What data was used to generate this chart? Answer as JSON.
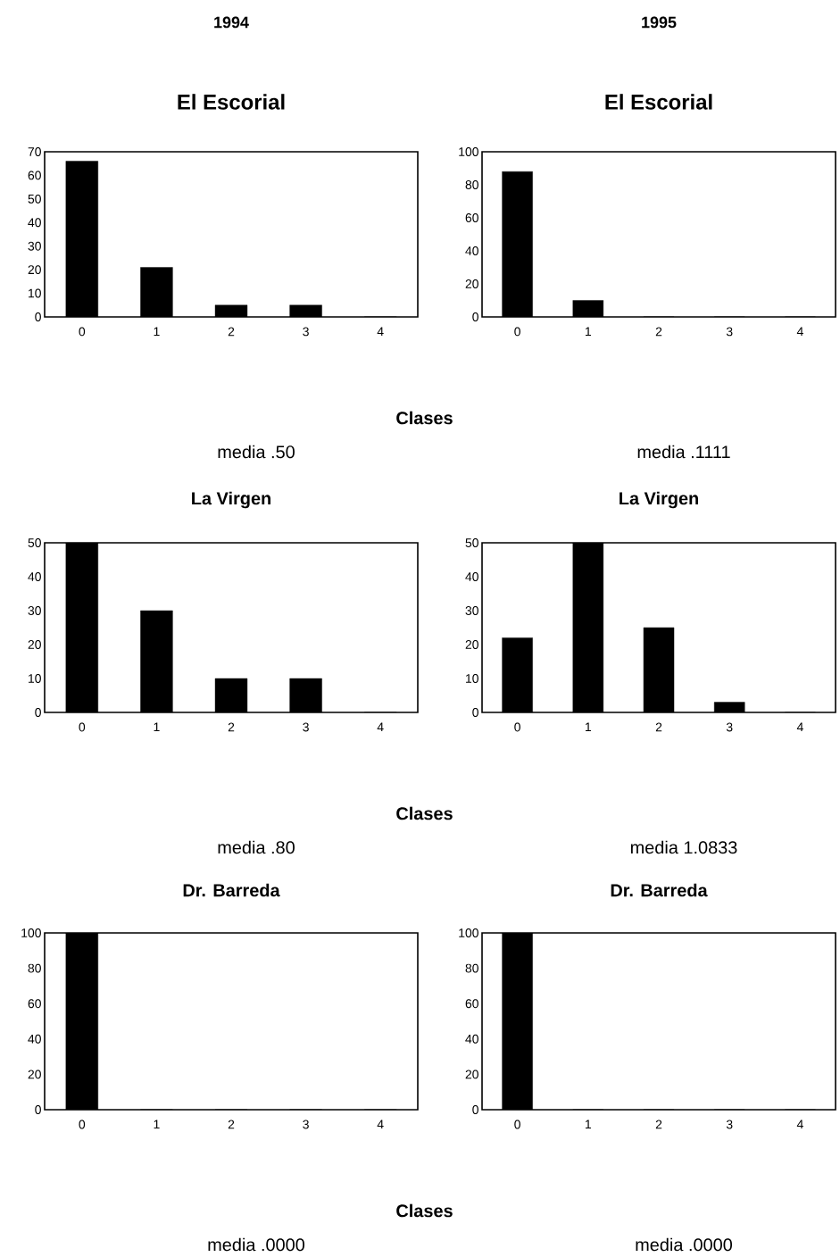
{
  "chart_data": [
    {
      "type": "bar",
      "subtitle": "1994",
      "title": "El Escorial",
      "xlabel": "Clases",
      "annotations": [
        "media .50"
      ],
      "categories": [
        "0",
        "1",
        "2",
        "3",
        "4"
      ],
      "values": [
        66,
        21,
        5,
        5,
        0
      ],
      "color": "#000000",
      "ylim": [
        0,
        70
      ],
      "yticks": [
        0,
        10,
        20,
        30,
        40,
        50,
        60,
        70
      ]
    },
    {
      "type": "bar",
      "subtitle": "1995",
      "title": "El Escorial",
      "annotations": [
        "media .1111"
      ],
      "categories": [
        "0",
        "1",
        "2",
        "3",
        "4"
      ],
      "values": [
        88,
        10,
        0,
        0,
        0
      ],
      "color": "#000000",
      "ylim": [
        0,
        100
      ],
      "yticks": [
        0,
        20,
        40,
        60,
        80,
        100
      ]
    },
    {
      "type": "bar",
      "title": "La Virgen",
      "xlabel": "Clases",
      "annotations": [
        "media .80"
      ],
      "categories": [
        "0",
        "1",
        "2",
        "3",
        "4"
      ],
      "values": [
        50,
        30,
        10,
        10,
        0
      ],
      "color": "#000000",
      "ylim": [
        0,
        50
      ],
      "yticks": [
        0,
        10,
        20,
        30,
        40,
        50
      ]
    },
    {
      "type": "bar",
      "title": "La Virgen",
      "annotations": [
        "media 1.0833"
      ],
      "categories": [
        "0",
        "1",
        "2",
        "3",
        "4"
      ],
      "values": [
        22,
        50,
        25,
        3,
        0
      ],
      "color": "#000000",
      "ylim": [
        0,
        50
      ],
      "yticks": [
        0,
        10,
        20,
        30,
        40,
        50
      ]
    },
    {
      "type": "bar",
      "title": "Dr. Barreda",
      "xlabel": "Clases",
      "annotations": [
        "media .0000"
      ],
      "categories": [
        "0",
        "1",
        "2",
        "3",
        "4"
      ],
      "values": [
        100,
        0,
        0,
        0,
        0
      ],
      "color": "#000000",
      "ylim": [
        0,
        100
      ],
      "yticks": [
        0,
        20,
        40,
        60,
        80,
        100
      ]
    },
    {
      "type": "bar",
      "title": "Dr. Barreda",
      "annotations": [
        "media .0000"
      ],
      "categories": [
        "0",
        "1",
        "2",
        "3",
        "4"
      ],
      "values": [
        100,
        0,
        0,
        0,
        0
      ],
      "color": "#000000",
      "ylim": [
        0,
        100
      ],
      "yticks": [
        0,
        20,
        40,
        60,
        80,
        100
      ]
    }
  ]
}
